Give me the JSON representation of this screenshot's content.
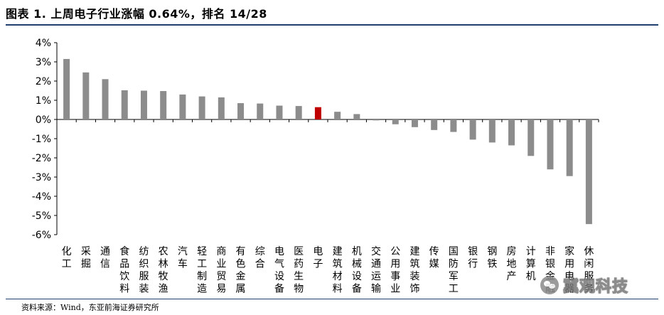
{
  "header": {
    "title": "图表 1.   上周电子行业涨幅 0.64%，排名 14/28"
  },
  "footer": {
    "source": "资料来源：Wind，东亚前海证券研究所"
  },
  "watermark": {
    "text": "冀观科技",
    "icon": "wechat-icon"
  },
  "colors": {
    "bar": "#8c8c8c",
    "highlight": "#c00000",
    "rule": "#1f3f6e",
    "axis": "#000000"
  },
  "chart_data": {
    "type": "bar",
    "title": "",
    "xlabel": "",
    "ylabel": "",
    "ylim": [
      -6,
      4
    ],
    "yticks": [
      "4%",
      "3%",
      "2%",
      "1%",
      "0%",
      "-1%",
      "-2%",
      "-3%",
      "-4%",
      "-5%",
      "-6%"
    ],
    "grid": false,
    "legend": "none",
    "highlight_category": "电子",
    "categories": [
      "化工",
      "采掘",
      "通信",
      "食品饮料",
      "纺织服装",
      "农林牧渔",
      "汽车",
      "轻工制造",
      "商业贸易",
      "有色金属",
      "综合",
      "电气设备",
      "医药生物",
      "电子",
      "建筑材料",
      "机械设备",
      "交通运输",
      "公用事业",
      "建筑装饰",
      "传媒",
      "国防军工",
      "银行",
      "钢铁",
      "房地产",
      "计算机",
      "非银金融",
      "家用电器",
      "休闲服务"
    ],
    "values": [
      3.15,
      2.45,
      2.1,
      1.52,
      1.5,
      1.48,
      1.3,
      1.2,
      1.15,
      0.85,
      0.83,
      0.72,
      0.7,
      0.64,
      0.4,
      0.28,
      -0.05,
      -0.25,
      -0.4,
      -0.55,
      -0.65,
      -1.05,
      -1.2,
      -1.35,
      -1.9,
      -2.6,
      -2.95,
      -5.45
    ]
  }
}
